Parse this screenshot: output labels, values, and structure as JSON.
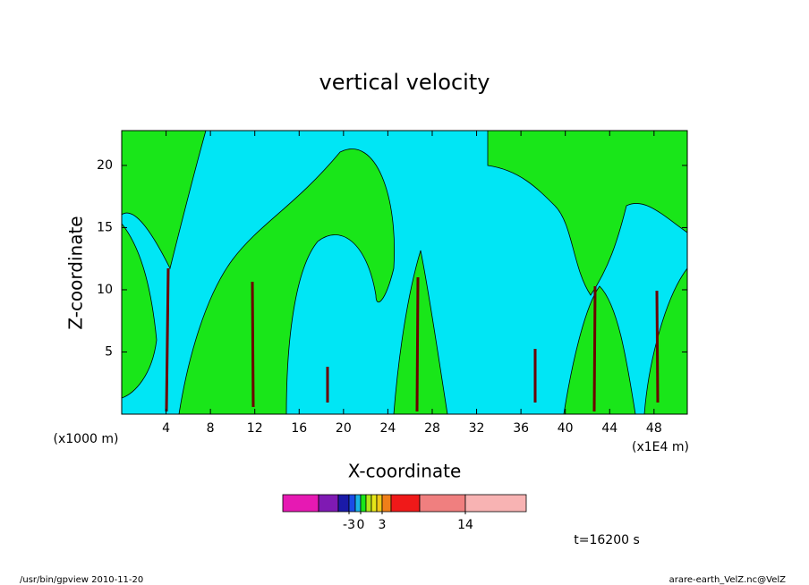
{
  "chart_data": {
    "type": "contour",
    "title": "vertical velocity",
    "x_label": "X-coordinate",
    "y_label": "Z-coordinate",
    "x_unit_left": "(x1000 m)",
    "x_unit_right": "(x1E4 m)",
    "xlim": [
      0,
      51
    ],
    "ylim": [
      0,
      22.8
    ],
    "xticks": [
      4,
      8,
      12,
      16,
      20,
      24,
      28,
      32,
      36,
      40,
      44,
      48
    ],
    "yticks": [
      5,
      10,
      15,
      20
    ],
    "colorbar": {
      "levels": [
        -10,
        -5,
        -3,
        -1,
        0,
        1,
        2,
        2.5,
        3,
        5,
        10,
        14
      ],
      "colors": [
        "#e619b3",
        "#7f1ab3",
        "#1a1aa8",
        "#1a4ce6",
        "#1ab3e6",
        "#19e619",
        "#b3e619",
        "#e6e619",
        "#f0c819",
        "#f07f19",
        "#f01919",
        "#f07f7f",
        "#f8b3b3"
      ],
      "ticks": [
        -3,
        0,
        3,
        14
      ]
    },
    "time_label": "t=16200 s",
    "footer_left": "/usr/bin/gpview   2010-11-20",
    "footer_right": "arare-earth_VelZ.nc@VelZ"
  }
}
